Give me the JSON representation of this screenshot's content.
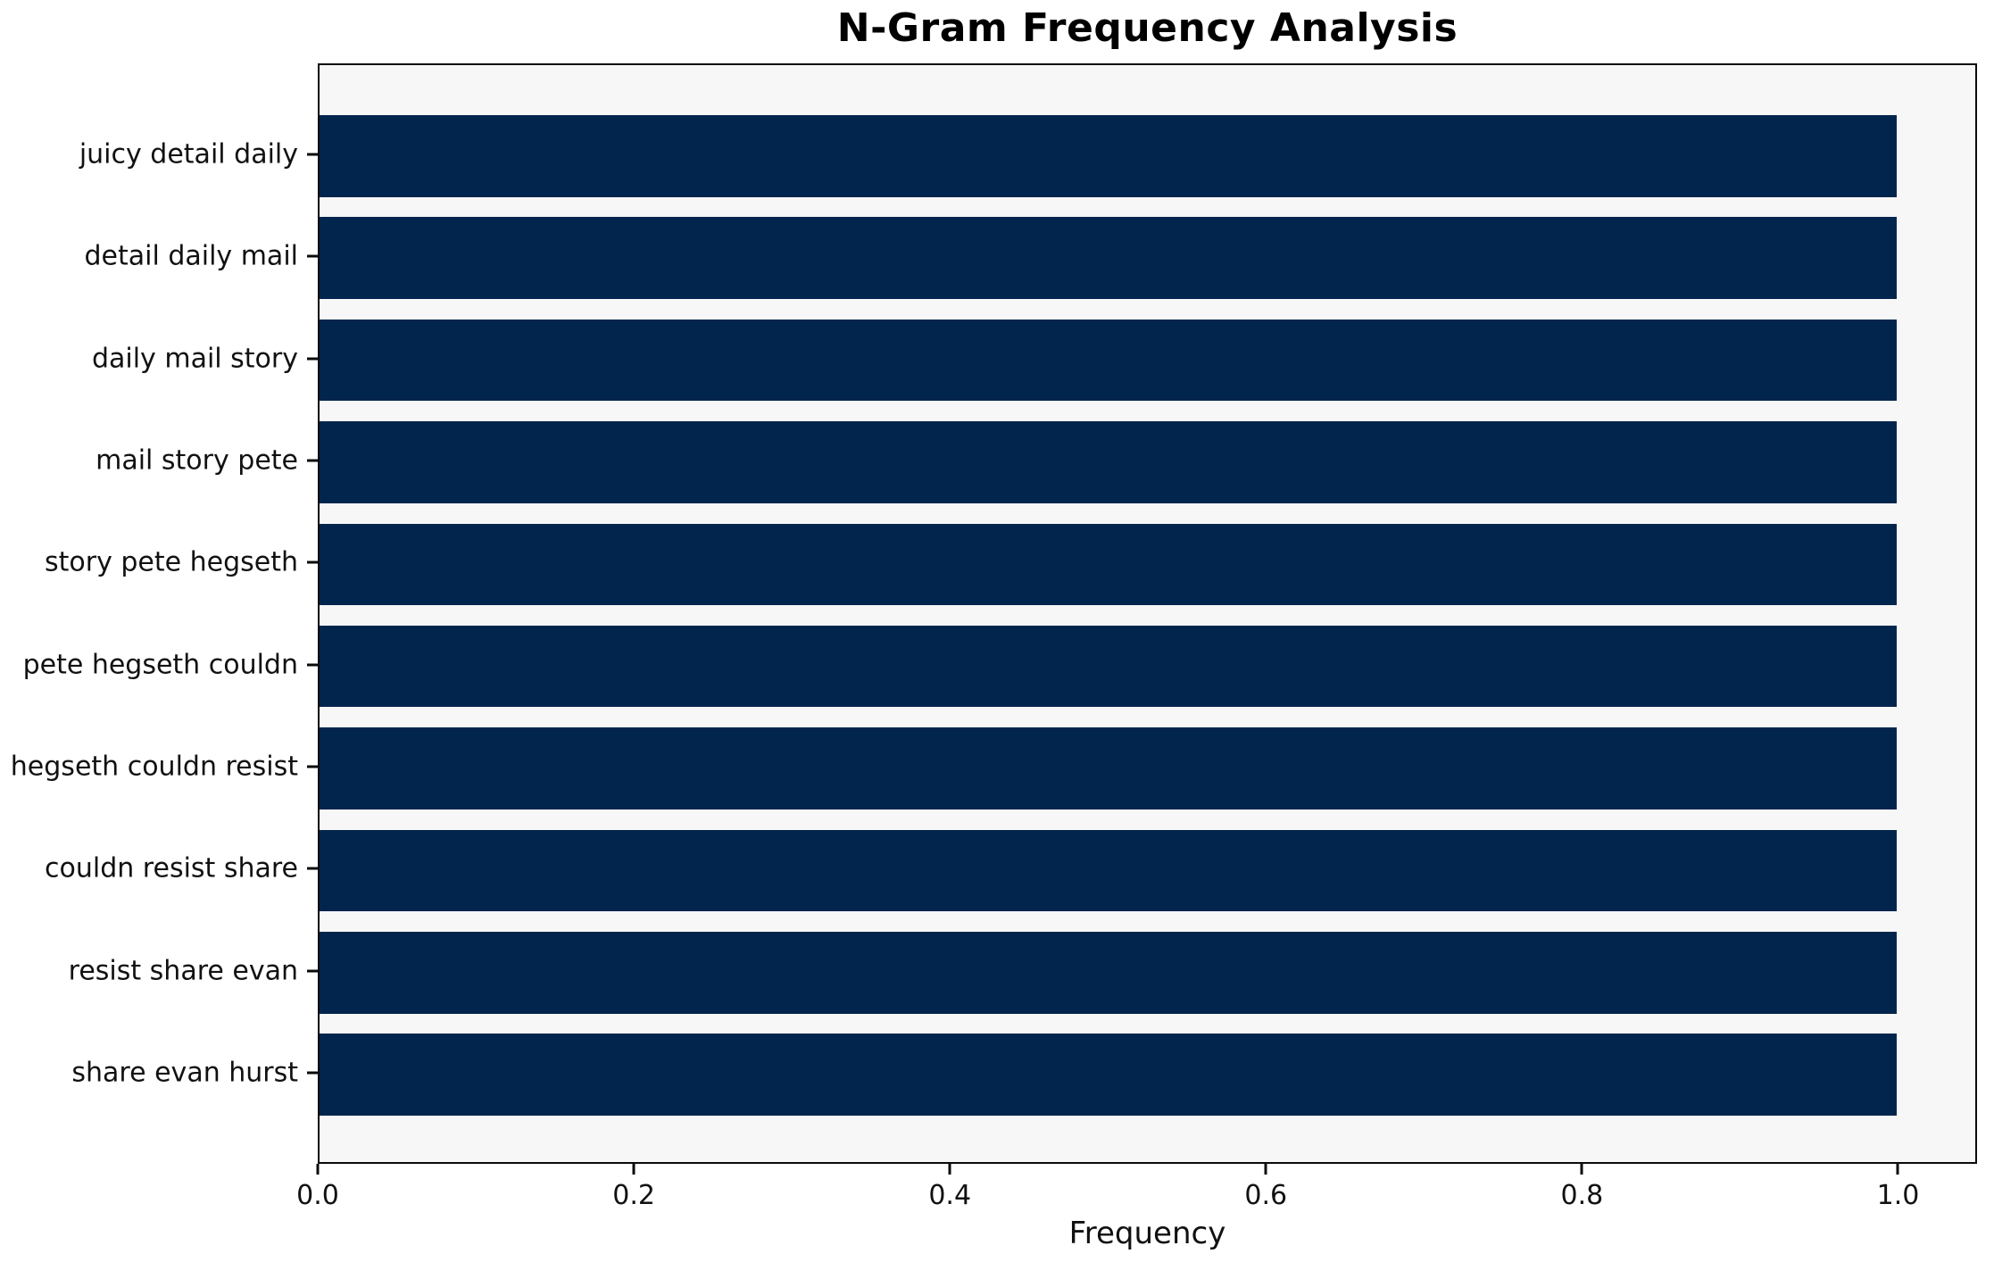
{
  "chart_data": {
    "type": "bar",
    "orientation": "horizontal",
    "title": "N-Gram Frequency Analysis",
    "xlabel": "Frequency",
    "ylabel": "",
    "categories": [
      "juicy detail daily",
      "detail daily mail",
      "daily mail story",
      "mail story pete",
      "story pete hegseth",
      "pete hegseth couldn",
      "hegseth couldn resist",
      "couldn resist share",
      "resist share evan",
      "share evan hurst"
    ],
    "values": [
      1.0,
      1.0,
      1.0,
      1.0,
      1.0,
      1.0,
      1.0,
      1.0,
      1.0,
      1.0
    ],
    "xlim": [
      0,
      1.05
    ],
    "x_ticks": [
      0.0,
      0.2,
      0.4,
      0.6,
      0.8,
      1.0
    ],
    "x_tick_labels": [
      "0.0",
      "0.2",
      "0.4",
      "0.6",
      "0.8",
      "1.0"
    ],
    "bar_height_frac": 0.8,
    "bar_color": "#02254d",
    "plot_bg": "#f7f7f7",
    "figure_bg": "#ffffff",
    "grid": false,
    "legend": false
  }
}
